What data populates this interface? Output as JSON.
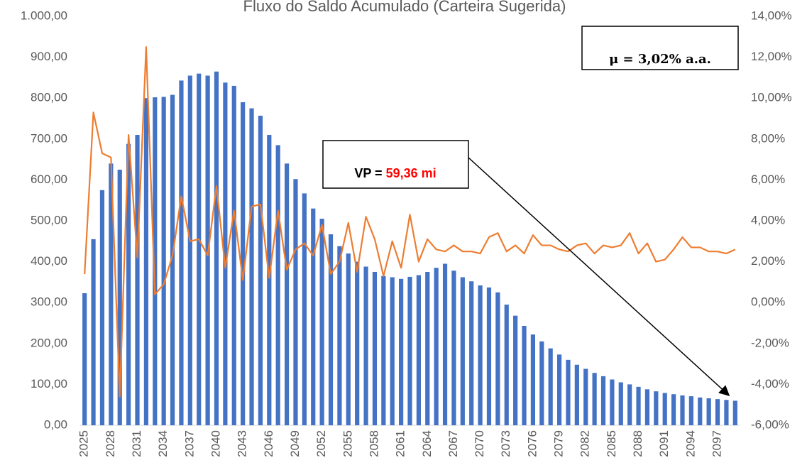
{
  "chart_data": {
    "type": "bar_line",
    "title": "Fluxo do Saldo Acumulado (Carteira Sugerida)",
    "annotations": {
      "mu": "μ = 3,02% a.a.",
      "vp_prefix": "VP =",
      "vp_value": "59,36 mi"
    },
    "categories": [
      2025,
      null,
      null,
      2028,
      null,
      null,
      2031,
      null,
      null,
      2034,
      null,
      null,
      2037,
      null,
      null,
      2040,
      null,
      null,
      2043,
      null,
      null,
      2046,
      null,
      null,
      2049,
      null,
      null,
      2052,
      null,
      null,
      2055,
      null,
      null,
      2058,
      null,
      null,
      2061,
      null,
      null,
      2064,
      null,
      null,
      2067,
      null,
      null,
      2070,
      null,
      null,
      2073,
      null,
      null,
      2076,
      null,
      null,
      2079,
      null,
      null,
      2082,
      null,
      null,
      2085,
      null,
      null,
      2088,
      null,
      null,
      2091,
      null,
      null,
      2094,
      null,
      null,
      2097,
      null,
      null
    ],
    "series": [
      {
        "type": "bar",
        "axis": "y",
        "color": "#4472c4",
        "values": [
          323,
          455,
          575,
          640,
          625,
          688,
          710,
          800,
          802,
          803,
          808,
          843,
          855,
          860,
          855,
          865,
          838,
          830,
          790,
          775,
          757,
          710,
          685,
          640,
          602,
          567,
          530,
          505,
          467,
          438,
          420,
          400,
          388,
          375,
          365,
          362,
          358,
          363,
          367,
          375,
          385,
          395,
          378,
          362,
          352,
          342,
          337,
          325,
          295,
          268,
          243,
          222,
          205,
          188,
          173,
          160,
          148,
          138,
          128,
          120,
          112,
          105,
          100,
          94,
          88,
          83,
          79,
          76,
          73,
          71,
          68,
          66,
          64,
          62,
          60
        ]
      },
      {
        "type": "line",
        "axis": "y2",
        "color": "#ed7d31",
        "values": [
          1.4,
          9.3,
          7.3,
          7.1,
          -4.6,
          8.2,
          2.2,
          12.5,
          0.4,
          0.9,
          2.3,
          5.2,
          3.0,
          3.1,
          2.3,
          5.7,
          1.7,
          4.5,
          1.1,
          4.7,
          4.8,
          1.2,
          4.5,
          1.6,
          2.6,
          2.9,
          2.3,
          3.8,
          1.4,
          2.0,
          3.9,
          1.5,
          4.2,
          3.1,
          1.3,
          3.0,
          1.7,
          4.3,
          2.0,
          3.1,
          2.6,
          2.5,
          2.8,
          2.5,
          2.5,
          2.4,
          3.2,
          3.4,
          2.5,
          2.8,
          2.4,
          3.3,
          2.8,
          2.8,
          2.6,
          2.5,
          2.8,
          2.9,
          2.4,
          2.8,
          2.7,
          2.8,
          3.4,
          2.4,
          2.9,
          2.0,
          2.1,
          2.6,
          3.2,
          2.7,
          2.7,
          2.5,
          2.5,
          2.4,
          2.6
        ]
      }
    ],
    "ylim": [
      0,
      1000
    ],
    "yticks": [
      {
        "value": 0,
        "label": "0,00"
      },
      {
        "value": 100,
        "label": "100,00"
      },
      {
        "value": 200,
        "label": "200,00"
      },
      {
        "value": 300,
        "label": "300,00"
      },
      {
        "value": 400,
        "label": "400,00"
      },
      {
        "value": 500,
        "label": "500,00"
      },
      {
        "value": 600,
        "label": "600,00"
      },
      {
        "value": 700,
        "label": "700,00"
      },
      {
        "value": 800,
        "label": "800,00"
      },
      {
        "value": 900,
        "label": "900,00"
      },
      {
        "value": 1000,
        "label": "1.000,00"
      }
    ],
    "y2lim": [
      -6,
      14
    ],
    "y2ticks": [
      {
        "value": -6,
        "label": "-6,00%"
      },
      {
        "value": -4,
        "label": "-4,00%"
      },
      {
        "value": -2,
        "label": "-2,00%"
      },
      {
        "value": 0,
        "label": "0,00%"
      },
      {
        "value": 2,
        "label": "2,00%"
      },
      {
        "value": 4,
        "label": "4,00%"
      },
      {
        "value": 6,
        "label": "6,00%"
      },
      {
        "value": 8,
        "label": "8,00%"
      },
      {
        "value": 10,
        "label": "10,00%"
      },
      {
        "value": 12,
        "label": "12,00%"
      },
      {
        "value": 14,
        "label": "14,00%"
      }
    ],
    "grid": false
  }
}
